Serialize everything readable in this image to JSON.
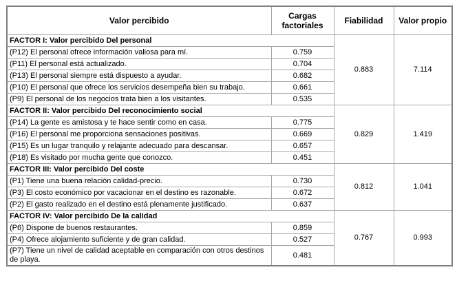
{
  "table": {
    "headers": [
      "Valor percibido",
      "Cargas factoriales",
      "Fiabilidad",
      "Valor propio"
    ],
    "factors": [
      {
        "title": "FACTOR I: Valor percibido Del personal",
        "reliability": "0.883",
        "eigenvalue": "7.114",
        "items": [
          {
            "text": "(P12) El personal ofrece información valiosa para mí.",
            "loading": "0.759"
          },
          {
            "text": "(P11) El personal está actualizado.",
            "loading": "0.704"
          },
          {
            "text": "(P13) El personal siempre está dispuesto a ayudar.",
            "loading": "0.682"
          },
          {
            "text": "(P10) El personal que ofrece los servicios desempeña bien su trabajo.",
            "loading": "0.661"
          },
          {
            "text": "(P9) El personal de los negocios trata bien a los visitantes.",
            "loading": "0.535"
          }
        ]
      },
      {
        "title": "FACTOR II: Valor percibido Del reconocimiento social",
        "reliability": "0.829",
        "eigenvalue": "1.419",
        "items": [
          {
            "text": "(P14) La gente es amistosa y te hace sentir como en casa.",
            "loading": "0.775"
          },
          {
            "text": "(P16) El personal me proporciona sensaciones positivas.",
            "loading": "0.669"
          },
          {
            "text": "(P15) Es un lugar tranquilo y relajante adecuado para descansar.",
            "loading": "0.657"
          },
          {
            "text": "(P18) Es visitado por mucha gente que conozco.",
            "loading": "0.451"
          }
        ]
      },
      {
        "title": "FACTOR III: Valor percibido Del coste",
        "reliability": "0.812",
        "eigenvalue": "1.041",
        "items": [
          {
            "text": "(P1) Tiene una buena relación calidad-precio.",
            "loading": "0.730"
          },
          {
            "text": "(P3) El costo económico por vacacionar en el destino es razonable.",
            "loading": "0.672"
          },
          {
            "text": "(P2) El gasto realizado en el destino está plenamente justificado.",
            "loading": "0.637"
          }
        ]
      },
      {
        "title": "FACTOR IV: Valor percibido De la calidad",
        "reliability": "0.767",
        "eigenvalue": "0.993",
        "items": [
          {
            "text": "(P6) Dispone de buenos restaurantes.",
            "loading": "0.859"
          },
          {
            "text": "(P4) Ofrece alojamiento suficiente y de gran calidad.",
            "loading": "0.527"
          },
          {
            "text": "(P7) Tiene un nivel de calidad aceptable en comparación con otros destinos de playa.",
            "loading": "0.481"
          }
        ]
      }
    ]
  },
  "colors": {
    "border_outer": "#7f7f7f",
    "border_inner": "#a6a6a6",
    "text": "#000000",
    "background": "#ffffff"
  }
}
